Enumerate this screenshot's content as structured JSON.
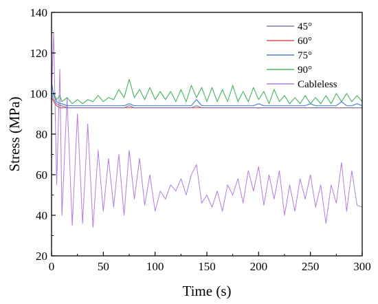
{
  "chart_data": {
    "type": "line",
    "title": "",
    "xlabel": "Time (s)",
    "ylabel": "Stress (MPa)",
    "xlim": [
      0,
      300
    ],
    "ylim": [
      20,
      140
    ],
    "xticks": [
      0,
      50,
      100,
      150,
      200,
      250,
      300
    ],
    "yticks": [
      20,
      40,
      60,
      80,
      100,
      120,
      140
    ],
    "x_tick_labels": [
      "0",
      "50",
      "100",
      "150",
      "200",
      "250",
      "300"
    ],
    "y_tick_labels": [
      "20",
      "40",
      "60",
      "80",
      "100",
      "120",
      "140"
    ],
    "grid": false,
    "legend_position": "top-right",
    "x": [
      0,
      2,
      5,
      8,
      10,
      15,
      20,
      25,
      30,
      35,
      40,
      45,
      50,
      55,
      60,
      65,
      70,
      75,
      80,
      85,
      90,
      95,
      100,
      105,
      110,
      115,
      120,
      125,
      130,
      135,
      140,
      145,
      150,
      155,
      160,
      165,
      170,
      175,
      180,
      185,
      190,
      195,
      200,
      205,
      210,
      215,
      220,
      225,
      230,
      235,
      240,
      245,
      250,
      255,
      260,
      265,
      270,
      275,
      280,
      285,
      290,
      295,
      300
    ],
    "series": [
      {
        "name": "45°",
        "color": "#7b7faa",
        "values": [
          100,
          97,
          95,
          94,
          94,
          93,
          93,
          93,
          93,
          93,
          93,
          93,
          93,
          93,
          93,
          93,
          93,
          94,
          93,
          93,
          93,
          93,
          93,
          93,
          93,
          93,
          93,
          93,
          93,
          93,
          94,
          93,
          93,
          93,
          93,
          93,
          93,
          93,
          93,
          93,
          93,
          93,
          93,
          93,
          93,
          93,
          93,
          93,
          93,
          93,
          93,
          93,
          93,
          93,
          93,
          93,
          93,
          93,
          93,
          93,
          93,
          93,
          93
        ]
      },
      {
        "name": "60°",
        "color": "#e05050",
        "values": [
          98,
          96,
          94,
          93,
          93,
          93,
          93,
          93,
          93,
          93,
          93,
          93,
          93,
          93,
          93,
          93,
          93,
          93,
          93,
          93,
          93,
          93,
          93,
          93,
          93,
          93,
          93,
          93,
          93,
          93,
          93,
          93,
          93,
          93,
          93,
          93,
          93,
          93,
          93,
          93,
          93,
          93,
          93,
          93,
          93,
          93,
          93,
          93,
          93,
          93,
          93,
          93,
          93,
          93,
          93,
          93,
          93,
          93,
          93,
          93,
          93,
          93,
          93
        ]
      },
      {
        "name": "75°",
        "color": "#4a80d6",
        "values": [
          106,
          99,
          96,
          95,
          95,
          94,
          94,
          94,
          94,
          94,
          94,
          94,
          94,
          94,
          94,
          94,
          94,
          95,
          94,
          94,
          94,
          94,
          94,
          94,
          94,
          94,
          94,
          94,
          94,
          94,
          97,
          94,
          94,
          94,
          94,
          94,
          94,
          94,
          94,
          94,
          94,
          94,
          95,
          94,
          94,
          94,
          94,
          94,
          94,
          94,
          94,
          94,
          95,
          94,
          94,
          94,
          94,
          94,
          96,
          94,
          94,
          95,
          94
        ]
      },
      {
        "name": "90°",
        "color": "#4fb86a",
        "values": [
          104,
          100,
          97,
          99,
          96,
          98,
          95,
          97,
          95,
          97,
          96,
          99,
          96,
          98,
          97,
          102,
          98,
          107,
          98,
          102,
          97,
          103,
          97,
          101,
          97,
          101,
          96,
          102,
          96,
          104,
          98,
          103,
          96,
          103,
          96,
          102,
          96,
          104,
          96,
          101,
          96,
          103,
          97,
          101,
          95,
          102,
          96,
          99,
          95,
          98,
          95,
          99,
          95,
          98,
          95,
          99,
          95,
          100,
          96,
          100,
          96,
          99,
          96
        ]
      },
      {
        "name": "Cableless",
        "color": "#b07ce0",
        "values": [
          100,
          130,
          55,
          112,
          40,
          98,
          35,
          90,
          36,
          85,
          34,
          72,
          42,
          68,
          44,
          70,
          40,
          72,
          48,
          68,
          45,
          60,
          42,
          52,
          48,
          55,
          52,
          58,
          50,
          60,
          65,
          46,
          50,
          44,
          52,
          42,
          55,
          50,
          58,
          46,
          62,
          52,
          64,
          45,
          60,
          48,
          62,
          40,
          55,
          42,
          58,
          48,
          60,
          44,
          55,
          36,
          55,
          46,
          66,
          42,
          62,
          45,
          44
        ]
      }
    ]
  }
}
